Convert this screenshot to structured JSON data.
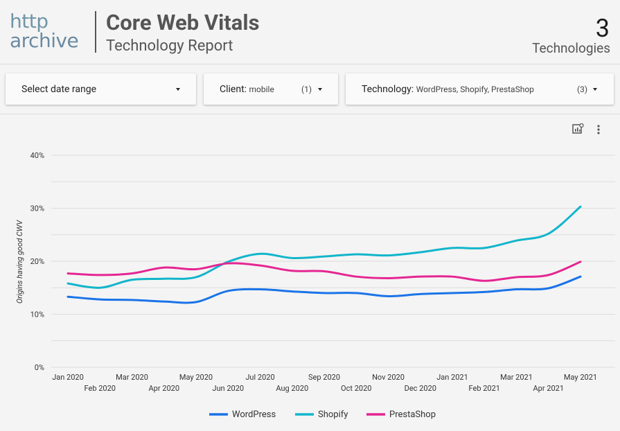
{
  "header": {
    "logo_top": "http",
    "logo_bottom": "archive",
    "title": "Core Web Vitals",
    "subtitle": "Technology Report",
    "tech_count": "3",
    "tech_label": "Technologies"
  },
  "controls": {
    "date_range": {
      "label": "Select date range"
    },
    "client": {
      "label": "Client:",
      "value": "mobile",
      "count": "(1)"
    },
    "technology": {
      "label": "Technology:",
      "value": "WordPress, Shopify, PrestaShop",
      "count": "(3)"
    }
  },
  "chart_icons": [
    "explore-chart-icon",
    "more-vert-icon"
  ],
  "chart_data": {
    "type": "line",
    "ylabel": "Origins having good CWV",
    "xlabel": "",
    "ylim": [
      0,
      40
    ],
    "yticks": [
      "0%",
      "10%",
      "20%",
      "30%",
      "40%"
    ],
    "grid": true,
    "legend": "bottom",
    "x": [
      "Jan 2020",
      "Feb 2020",
      "Mar 2020",
      "Apr 2020",
      "May 2020",
      "Jun 2020",
      "Jul 2020",
      "Aug 2020",
      "Sep 2020",
      "Oct 2020",
      "Nov 2020",
      "Dec 2020",
      "Jan 2021",
      "Feb 2021",
      "Mar 2021",
      "Apr 2021",
      "May 2021"
    ],
    "series": [
      {
        "name": "WordPress",
        "color": "#1a73e8",
        "values": [
          13.3,
          12.8,
          12.7,
          12.4,
          12.3,
          14.4,
          14.7,
          14.3,
          14.0,
          14.0,
          13.4,
          13.8,
          14.0,
          14.2,
          14.7,
          14.9,
          17.1
        ]
      },
      {
        "name": "Shopify",
        "color": "#12b5cb",
        "values": [
          15.8,
          15.0,
          16.5,
          16.7,
          17.0,
          19.9,
          21.4,
          20.6,
          20.9,
          21.3,
          21.1,
          21.7,
          22.5,
          22.5,
          23.9,
          25.2,
          30.3
        ]
      },
      {
        "name": "PrestaShop",
        "color": "#e52592",
        "values": [
          17.7,
          17.4,
          17.7,
          18.8,
          18.5,
          19.6,
          19.2,
          18.2,
          18.1,
          17.1,
          16.8,
          17.1,
          17.1,
          16.3,
          17.0,
          17.4,
          19.9
        ]
      }
    ]
  }
}
